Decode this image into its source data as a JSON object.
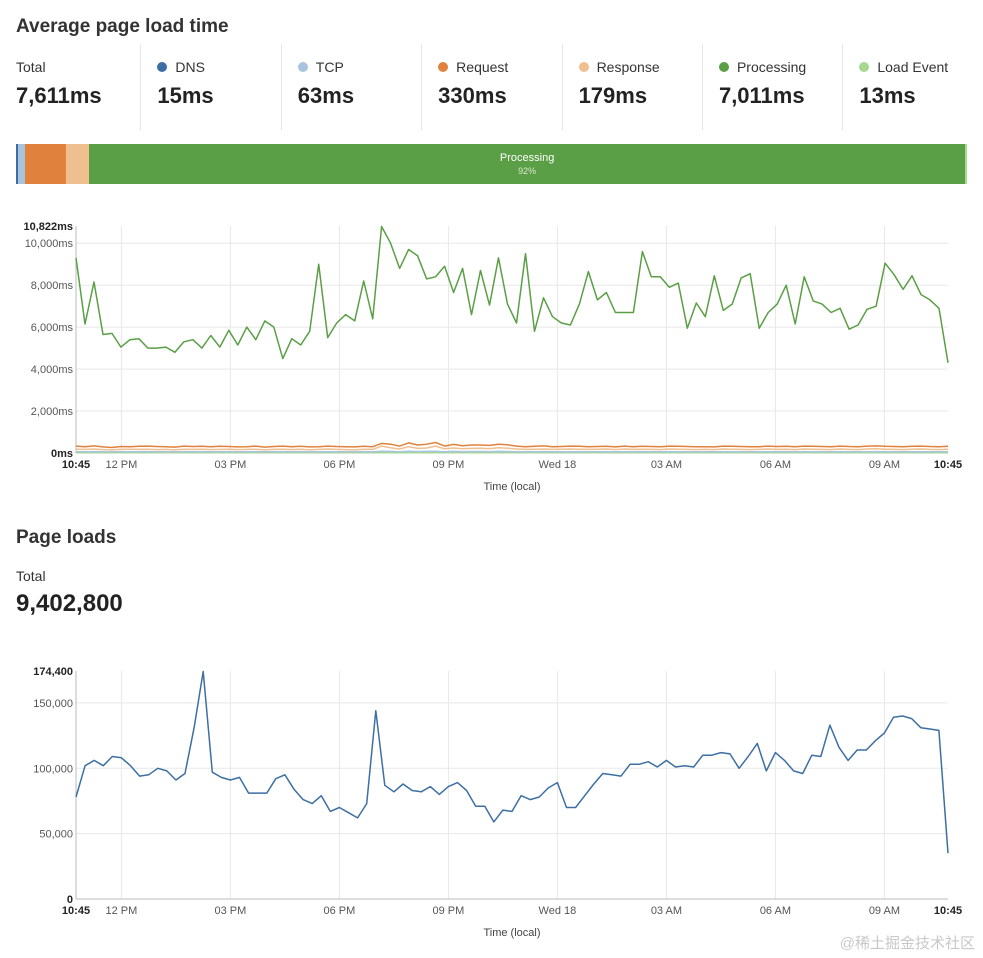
{
  "load_time": {
    "title": "Average page load time",
    "metrics": [
      {
        "label": "Total",
        "value": "7,611ms",
        "color": ""
      },
      {
        "label": "DNS",
        "value": "15ms",
        "color": "#3b6ea5"
      },
      {
        "label": "TCP",
        "value": "63ms",
        "color": "#a8c4e0"
      },
      {
        "label": "Request",
        "value": "330ms",
        "color": "#e0823d"
      },
      {
        "label": "Response",
        "value": "179ms",
        "color": "#f0bf8f"
      },
      {
        "label": "Processing",
        "value": "7,011ms",
        "color": "#5a9f45"
      },
      {
        "label": "Load Event",
        "value": "13ms",
        "color": "#a6d88f"
      }
    ],
    "breakdown_bar": {
      "segments": [
        {
          "name": "DNS",
          "fraction": 0.002,
          "color": "#3b6ea5"
        },
        {
          "name": "TCP",
          "fraction": 0.008,
          "color": "#a8c4e0"
        },
        {
          "name": "Request",
          "fraction": 0.043,
          "color": "#e0823d"
        },
        {
          "name": "Response",
          "fraction": 0.024,
          "color": "#f0bf8f"
        },
        {
          "name": "Processing",
          "fraction": 0.921,
          "color": "#5a9f45"
        },
        {
          "name": "Load Event",
          "fraction": 0.002,
          "color": "#a6d88f"
        }
      ],
      "label": "Processing",
      "percent": "92%"
    }
  },
  "page_loads": {
    "title": "Page loads",
    "total_label": "Total",
    "total_value": "9,402,800"
  },
  "chart_data": [
    {
      "type": "line",
      "xlabel": "Time (local)",
      "ylabel": "",
      "ylim": [
        0,
        10822
      ],
      "yticks": [
        {
          "value": 0,
          "label": "0ms"
        },
        {
          "value": 2000,
          "label": "2,000ms"
        },
        {
          "value": 4000,
          "label": "4,000ms"
        },
        {
          "value": 6000,
          "label": "6,000ms"
        },
        {
          "value": 8000,
          "label": "8,000ms"
        },
        {
          "value": 10000,
          "label": "10,000ms"
        },
        {
          "value": 10822,
          "label": "10,822ms"
        }
      ],
      "xlim_hours": [
        10.75,
        34.75
      ],
      "xticks": [
        {
          "hour": 10.75,
          "label": "10:45"
        },
        {
          "hour": 12,
          "label": "12 PM"
        },
        {
          "hour": 15,
          "label": "03 PM"
        },
        {
          "hour": 18,
          "label": "06 PM"
        },
        {
          "hour": 21,
          "label": "09 PM"
        },
        {
          "hour": 24,
          "label": "Wed 18"
        },
        {
          "hour": 27,
          "label": "03 AM"
        },
        {
          "hour": 30,
          "label": "06 AM"
        },
        {
          "hour": 33,
          "label": "09 AM"
        },
        {
          "hour": 34.75,
          "label": "10:45"
        }
      ],
      "grid": true,
      "series": [
        {
          "name": "Processing",
          "color": "#5a9f45",
          "values": [
            9300,
            6150,
            8150,
            5650,
            5700,
            5050,
            5400,
            5450,
            5000,
            5000,
            5050,
            4800,
            5300,
            5400,
            5000,
            5600,
            5050,
            5850,
            5150,
            6000,
            5400,
            6300,
            6000,
            4500,
            5450,
            5150,
            5800,
            9000,
            5500,
            6200,
            6600,
            6300,
            8200,
            6400,
            10800,
            10000,
            8800,
            9700,
            9400,
            8300,
            8400,
            8900,
            7650,
            8800,
            6600,
            8700,
            7050,
            9300,
            7100,
            6200,
            9500,
            5800,
            7400,
            6500,
            6200,
            6100,
            7100,
            8650,
            7300,
            7650,
            6700,
            6700,
            6700,
            9600,
            8400,
            8400,
            7900,
            8100,
            5950,
            7150,
            6500,
            8450,
            6800,
            7100,
            8350,
            8550,
            5950,
            6700,
            7100,
            8000,
            6150,
            8400,
            7250,
            7100,
            6700,
            6900,
            5900,
            6100,
            6850,
            7000,
            9050,
            8500,
            7800,
            8450,
            7550,
            7300,
            6900,
            4300
          ]
        },
        {
          "name": "Request",
          "color": "#e0823d",
          "values": [
            330,
            300,
            340,
            290,
            260,
            310,
            300,
            320,
            330,
            310,
            300,
            280,
            330,
            310,
            320,
            300,
            320,
            310,
            290,
            300,
            330,
            280,
            310,
            330,
            300,
            320,
            290,
            300,
            330,
            310,
            300,
            290,
            320,
            300,
            460,
            420,
            330,
            480,
            380,
            420,
            500,
            330,
            410,
            350,
            380,
            380,
            360,
            420,
            390,
            330,
            300,
            320,
            340,
            300,
            310,
            330,
            320,
            300,
            310,
            320,
            290,
            330,
            300,
            320,
            310,
            300,
            330,
            320,
            310,
            300,
            300,
            290,
            330,
            320,
            310,
            300,
            300,
            330,
            310,
            320,
            300,
            330,
            320,
            310,
            300,
            330,
            310,
            300,
            330,
            340,
            320,
            310,
            300,
            320,
            330,
            310,
            300,
            320
          ]
        },
        {
          "name": "Response",
          "color": "#f0bf8f",
          "values": [
            180,
            170,
            190,
            160,
            150,
            170,
            180,
            170,
            180,
            160,
            170,
            150,
            180,
            170,
            180,
            160,
            170,
            180,
            160,
            170,
            180,
            150,
            170,
            180,
            160,
            180,
            150,
            170,
            190,
            170,
            160,
            150,
            180,
            170,
            330,
            250,
            190,
            300,
            220,
            240,
            330,
            200,
            240,
            200,
            220,
            230,
            210,
            250,
            230,
            190,
            170,
            180,
            190,
            170,
            180,
            190,
            180,
            170,
            180,
            190,
            160,
            190,
            170,
            180,
            170,
            160,
            190,
            180,
            170,
            160,
            170,
            160,
            190,
            180,
            170,
            160,
            170,
            190,
            170,
            180,
            160,
            190,
            180,
            170,
            160,
            190,
            170,
            160,
            190,
            200,
            180,
            170,
            160,
            180,
            190,
            170,
            160,
            180
          ]
        },
        {
          "name": "TCP",
          "color": "#a8c4e0",
          "values": [
            63,
            60,
            65,
            58,
            55,
            62,
            60,
            63,
            64,
            61,
            60,
            58,
            64,
            62,
            63,
            60,
            62,
            61,
            58,
            60,
            63,
            57,
            61,
            64,
            60,
            62,
            58,
            60,
            64,
            61,
            60,
            58,
            63,
            60,
            80,
            75,
            64,
            85,
            70,
            75,
            88,
            64,
            74,
            66,
            70,
            70,
            68,
            75,
            72,
            64,
            60,
            62,
            65,
            60,
            61,
            64,
            62,
            60,
            61,
            63,
            58,
            63,
            60,
            62,
            61,
            60,
            64,
            62,
            61,
            60,
            60,
            58,
            64,
            62,
            61,
            60,
            60,
            64,
            61,
            62,
            60,
            64,
            62,
            61,
            60,
            64,
            61,
            60,
            64,
            66,
            62,
            61,
            60,
            62,
            64,
            61,
            60,
            62
          ]
        },
        {
          "name": "Load Event",
          "color": "#a6d88f",
          "values": [
            13,
            12,
            14,
            12,
            11,
            13,
            12,
            13,
            13,
            12,
            12,
            12,
            13,
            12,
            13,
            12,
            13,
            12,
            12,
            12,
            13,
            11,
            12,
            13,
            12,
            13,
            12,
            12,
            13,
            12,
            12,
            12,
            13,
            12,
            16,
            15,
            13,
            17,
            14,
            15,
            17,
            13,
            15,
            13,
            14,
            14,
            14,
            15,
            14,
            13,
            12,
            13,
            13,
            12,
            12,
            13,
            13,
            12,
            12,
            13,
            12,
            13,
            12,
            13,
            12,
            12,
            13,
            13,
            12,
            12,
            12,
            12,
            13,
            13,
            12,
            12,
            12,
            13,
            12,
            13,
            12,
            13,
            13,
            12,
            12,
            13,
            12,
            12,
            13,
            13,
            13,
            12,
            12,
            13,
            13,
            12,
            12,
            13
          ]
        },
        {
          "name": "DNS",
          "color": "#3b6ea5",
          "values": [
            15,
            14,
            16,
            14,
            13,
            15,
            14,
            15,
            15,
            14,
            14,
            14,
            15,
            14,
            15,
            14,
            15,
            14,
            14,
            14,
            15,
            13,
            14,
            15,
            14,
            15,
            14,
            14,
            15,
            14,
            14,
            14,
            15,
            14,
            19,
            17,
            15,
            20,
            16,
            17,
            20,
            15,
            17,
            15,
            16,
            16,
            16,
            17,
            16,
            15,
            14,
            15,
            15,
            14,
            14,
            15,
            15,
            14,
            14,
            15,
            14,
            15,
            14,
            15,
            14,
            14,
            15,
            15,
            14,
            14,
            14,
            14,
            15,
            15,
            14,
            14,
            14,
            15,
            14,
            15,
            14,
            15,
            15,
            14,
            14,
            15,
            14,
            14,
            15,
            15,
            15,
            14,
            14,
            15,
            15,
            14,
            14,
            15
          ]
        }
      ]
    },
    {
      "type": "line",
      "xlabel": "Time (local)",
      "ylabel": "",
      "ylim": [
        0,
        174400
      ],
      "yticks": [
        {
          "value": 0,
          "label": "0"
        },
        {
          "value": 50000,
          "label": "50,000"
        },
        {
          "value": 100000,
          "label": "100,000"
        },
        {
          "value": 150000,
          "label": "150,000"
        },
        {
          "value": 174400,
          "label": "174,400"
        }
      ],
      "xlim_hours": [
        10.75,
        34.75
      ],
      "xticks": [
        {
          "hour": 10.75,
          "label": "10:45"
        },
        {
          "hour": 12,
          "label": "12 PM"
        },
        {
          "hour": 15,
          "label": "03 PM"
        },
        {
          "hour": 18,
          "label": "06 PM"
        },
        {
          "hour": 21,
          "label": "09 PM"
        },
        {
          "hour": 24,
          "label": "Wed 18"
        },
        {
          "hour": 27,
          "label": "03 AM"
        },
        {
          "hour": 30,
          "label": "06 AM"
        },
        {
          "hour": 33,
          "label": "09 AM"
        },
        {
          "hour": 34.75,
          "label": "10:45"
        }
      ],
      "grid": true,
      "series": [
        {
          "name": "Page loads",
          "color": "#3d6fa3",
          "values": [
            78000,
            102000,
            106000,
            102000,
            109000,
            108000,
            102000,
            94000,
            95000,
            100000,
            98000,
            91000,
            96000,
            131000,
            174000,
            97000,
            93000,
            91000,
            93000,
            81000,
            81000,
            81000,
            92000,
            95000,
            84000,
            76000,
            73000,
            79000,
            67000,
            70000,
            66000,
            62000,
            73000,
            144000,
            87000,
            82000,
            88000,
            83000,
            82000,
            86000,
            80000,
            86000,
            89000,
            83000,
            71000,
            71000,
            59000,
            68000,
            67000,
            79000,
            76000,
            78000,
            85000,
            89000,
            70000,
            70000,
            79000,
            88000,
            96000,
            95000,
            94000,
            103000,
            103000,
            105000,
            101000,
            106000,
            101000,
            102000,
            101000,
            110000,
            110000,
            112000,
            111000,
            100000,
            109000,
            119000,
            98000,
            112000,
            106000,
            98000,
            96000,
            110000,
            109000,
            133000,
            116000,
            106000,
            114000,
            114000,
            121000,
            127000,
            139000,
            140000,
            138000,
            131000,
            130000,
            129000,
            35000
          ]
        }
      ]
    }
  ],
  "watermark": "@稀土掘金技术社区"
}
